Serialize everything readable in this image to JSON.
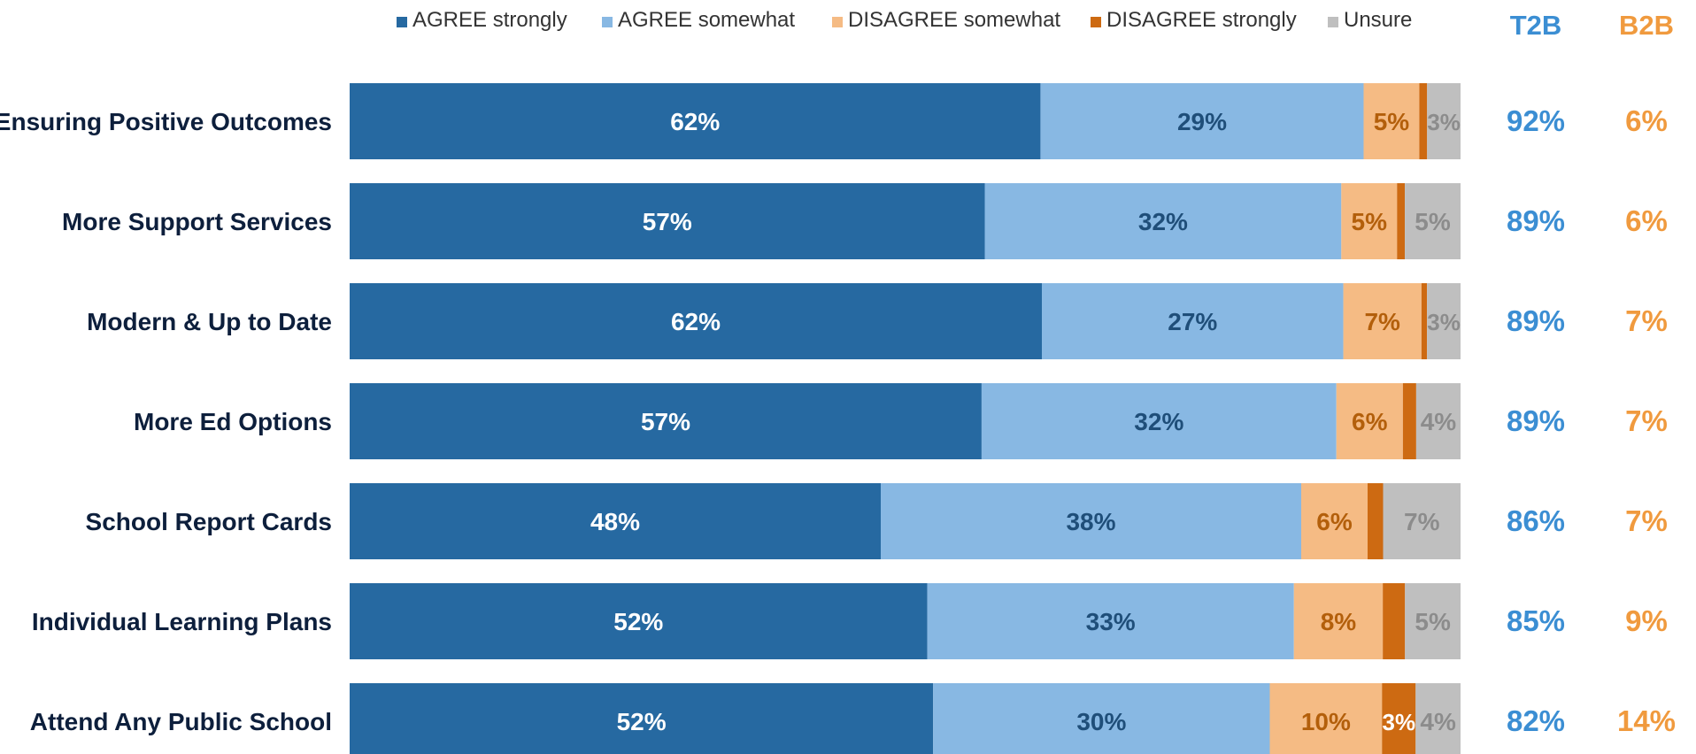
{
  "chart_data": {
    "type": "bar",
    "orientation": "horizontal",
    "stacked": true,
    "categories": [
      "Ensuring Positive Outcomes",
      "More Support Services",
      "Modern & Up to Date",
      "More Ed Options",
      "School Report Cards",
      "Individual Learning Plans",
      "Attend Any Public School"
    ],
    "series": [
      {
        "name": "AGREE strongly",
        "color": "#2669A1",
        "label_color": "#ffffff",
        "values": [
          62,
          57,
          62,
          57,
          48,
          52,
          52
        ]
      },
      {
        "name": "AGREE somewhat",
        "color": "#88B8E3",
        "label_color": "#1F4E79",
        "values": [
          29,
          32,
          27,
          32,
          38,
          33,
          30
        ]
      },
      {
        "name": "DISAGREE somewhat",
        "color": "#F5BB84",
        "label_color": "#B35F0B",
        "values": [
          5,
          5,
          7,
          6,
          6,
          8,
          10
        ]
      },
      {
        "name": "DISAGREE strongly",
        "color": "#CD6A12",
        "label_color": "#ffffff",
        "values": [
          0.7,
          0.7,
          0.5,
          1.2,
          1.4,
          2,
          3
        ],
        "labels": [
          "",
          "",
          "",
          "",
          "",
          "",
          "3%"
        ]
      },
      {
        "name": "Unsure",
        "color": "#BFBFBF",
        "label_color": "#8C8C8C",
        "values": [
          3,
          5,
          3,
          4,
          7,
          5,
          4
        ]
      }
    ],
    "value_suffix": "%",
    "summary_columns": [
      {
        "name": "T2B",
        "color": "#3B8ED3",
        "values": [
          "92%",
          "89%",
          "89%",
          "89%",
          "86%",
          "85%",
          "82%"
        ]
      },
      {
        "name": "B2B",
        "color": "#F09A3E",
        "values": [
          "6%",
          "6%",
          "7%",
          "7%",
          "7%",
          "9%",
          "14%"
        ]
      }
    ],
    "legend_position": "top",
    "grid": false
  }
}
